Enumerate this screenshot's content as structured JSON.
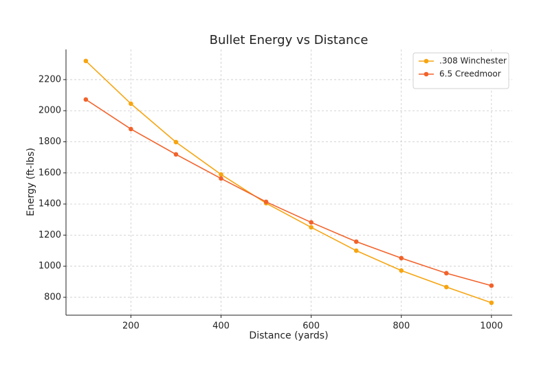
{
  "chart_data": {
    "type": "line",
    "title": "Bullet Energy vs Distance",
    "x_label": "Distance (yards)",
    "y_label": "Energy (ft-lbs)",
    "x": [
      100,
      200,
      300,
      400,
      500,
      600,
      700,
      800,
      900,
      1000
    ],
    "series": [
      {
        "name": ".308 Winchester",
        "color": "#f6a511",
        "values": [
          2320,
          2045,
          1798,
          1590,
          1405,
          1250,
          1100,
          972,
          866,
          765
        ]
      },
      {
        "name": "6.5 Creedmoor",
        "color": "#f2622a",
        "values": [
          2072,
          1882,
          1719,
          1564,
          1414,
          1282,
          1158,
          1052,
          955,
          875
        ]
      }
    ],
    "xlim": [
      56,
      1046
    ],
    "ylim": [
      685,
      2394
    ],
    "xticks": [
      200,
      400,
      600,
      800,
      1000
    ],
    "yticks": [
      800,
      1000,
      1200,
      1400,
      1600,
      1800,
      2000,
      2200
    ],
    "grid": true,
    "legend": "upper-right"
  }
}
